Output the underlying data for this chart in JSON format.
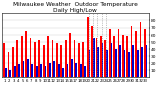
{
  "title": "Milwaukee Weather  Outdoor Temperature\nDaily High/Low",
  "title_fontsize": 4.2,
  "bar_color_high": "#FF0000",
  "bar_color_low": "#0000CC",
  "background_color": "#ffffff",
  "ylim": [
    0,
    90
  ],
  "yticks": [
    10,
    20,
    30,
    40,
    50,
    60,
    70,
    80
  ],
  "ytick_fontsize": 3.2,
  "xtick_fontsize": 2.8,
  "bar_width": 0.4,
  "highs": [
    48,
    35,
    42,
    52,
    58,
    65,
    55,
    50,
    52,
    45,
    58,
    52,
    48,
    45,
    52,
    62,
    52,
    48,
    50,
    85,
    72,
    55,
    58,
    52,
    68,
    58,
    68,
    60,
    58,
    72,
    65,
    78,
    68
  ],
  "lows": [
    12,
    10,
    15,
    18,
    22,
    25,
    18,
    15,
    18,
    15,
    20,
    22,
    18,
    12,
    18,
    25,
    20,
    18,
    15,
    38,
    55,
    42,
    48,
    38,
    48,
    40,
    45,
    38,
    35,
    45,
    38,
    42,
    45
  ],
  "x_labels": [
    "1",
    "2",
    "3",
    "4",
    "5",
    "6",
    "7",
    "8",
    "9",
    "10",
    "11",
    "12",
    "13",
    "14",
    "15",
    "16",
    "17",
    "18",
    "19",
    "20",
    "21",
    "22",
    "23",
    "24",
    "25",
    "26",
    "27",
    "28",
    "29",
    "30",
    "31",
    "32",
    "33"
  ],
  "dotted_lines": [
    19,
    20,
    21,
    22,
    23
  ],
  "grid_color": "#cccccc",
  "dot_line_color": "#888888"
}
